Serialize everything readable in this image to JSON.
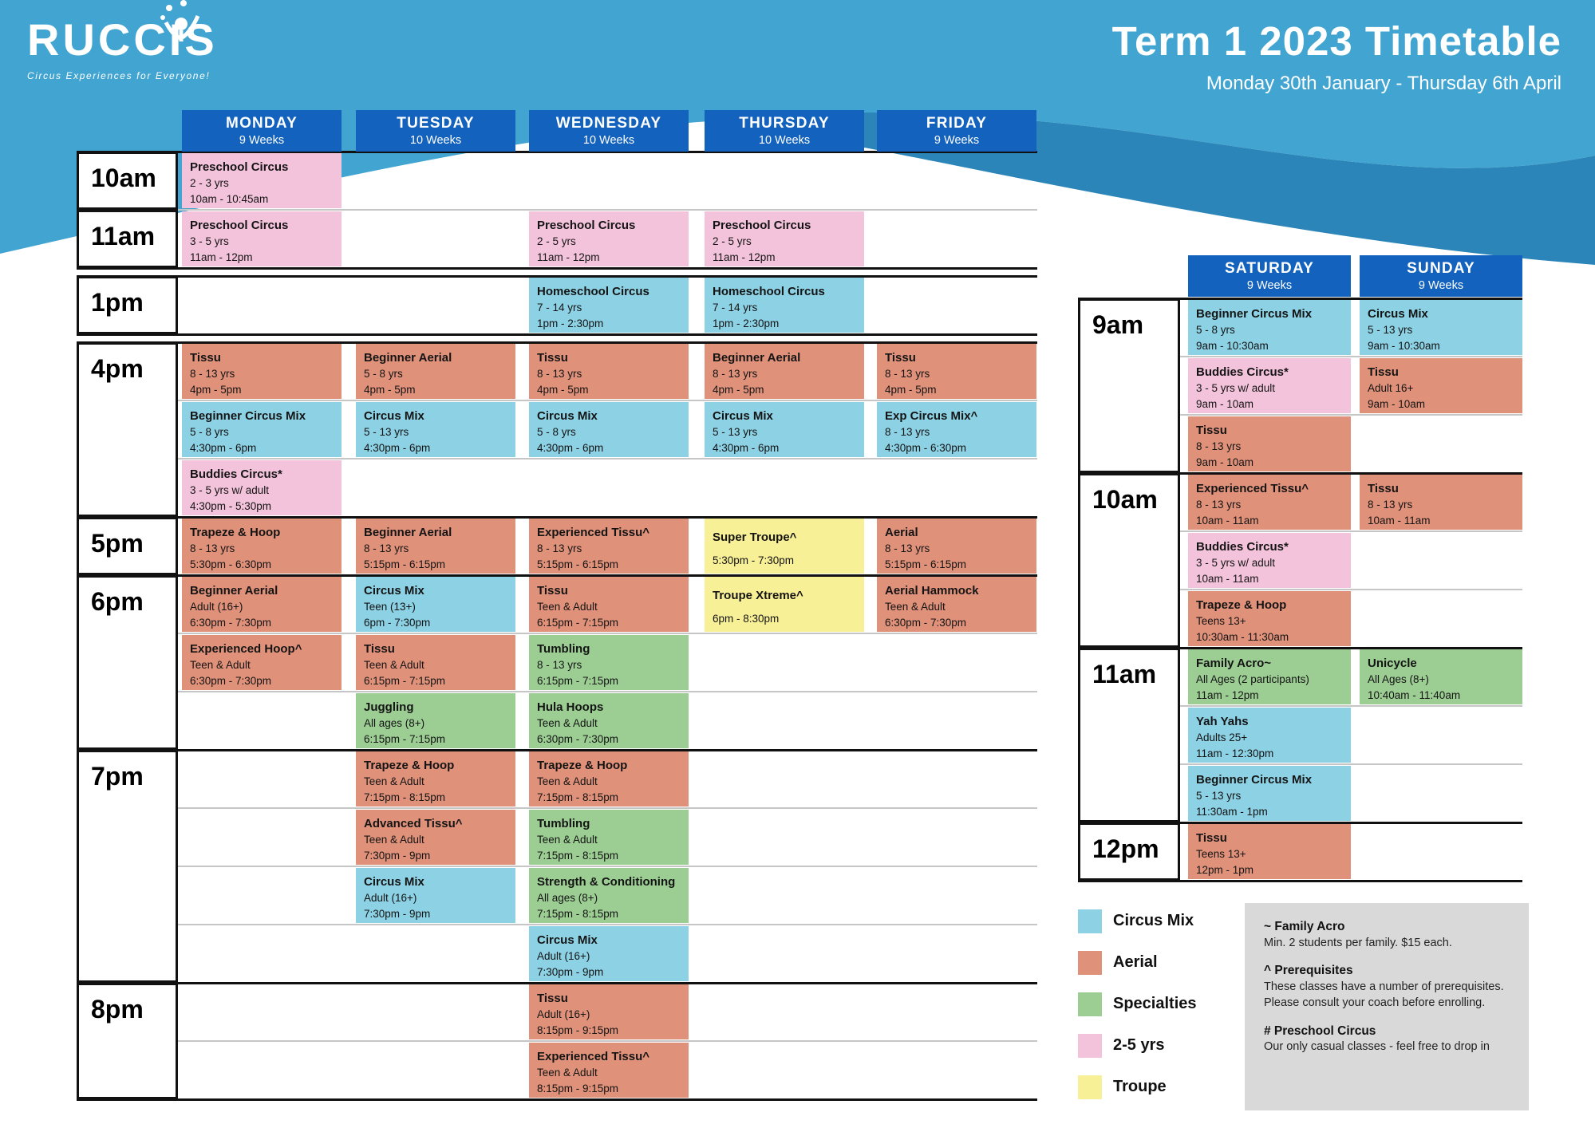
{
  "header": {
    "logo_text": "RUCCIS",
    "logo_tagline": "Circus Experiences for Everyone!",
    "title": "Term 1 2023 Timetable",
    "subtitle": "Monday 30th January - Thursday 6th April"
  },
  "colors": {
    "circus_mix": "#8CD1E4",
    "aerial": "#E0917A",
    "specialties": "#9CCE94",
    "two_five_yrs": "#F3C3DB",
    "troupe": "#F8F096",
    "day_header": "#1362BD",
    "banner_light": "#41A4D1",
    "banner_dark": "#2B85B8",
    "notes_bg": "#D9D9D9"
  },
  "weekday_grid": {
    "days": [
      {
        "label": "MONDAY",
        "weeks": "9 Weeks"
      },
      {
        "label": "TUESDAY",
        "weeks": "10 Weeks"
      },
      {
        "label": "WEDNESDAY",
        "weeks": "10 Weeks"
      },
      {
        "label": "THURSDAY",
        "weeks": "10 Weeks"
      },
      {
        "label": "FRIDAY",
        "weeks": "9 Weeks"
      }
    ],
    "blocks": [
      {
        "time": "10am",
        "thin_top": false,
        "gap_before": false,
        "rows": [
          [
            {
              "day": 0,
              "color": "two_five_yrs",
              "title": "Preschool Circus",
              "age": "2 - 3 yrs",
              "time": "10am - 10:45am"
            }
          ]
        ]
      },
      {
        "time": "11am",
        "thin_top": true,
        "gap_before": false,
        "rows": [
          [
            {
              "day": 0,
              "color": "two_five_yrs",
              "title": "Preschool Circus",
              "age": "3 - 5 yrs",
              "time": "11am - 12pm"
            },
            {
              "day": 2,
              "color": "two_five_yrs",
              "title": "Preschool Circus",
              "age": "2 - 5 yrs",
              "time": "11am - 12pm"
            },
            {
              "day": 3,
              "color": "two_five_yrs",
              "title": "Preschool Circus",
              "age": "2 - 5 yrs",
              "time": "11am - 12pm"
            }
          ]
        ]
      },
      {
        "time": "1pm",
        "thin_top": false,
        "gap_before": true,
        "rows": [
          [
            {
              "day": 2,
              "color": "circus_mix",
              "title": "Homeschool Circus",
              "age": "7 - 14 yrs",
              "time": "1pm - 2:30pm"
            },
            {
              "day": 3,
              "color": "circus_mix",
              "title": "Homeschool Circus",
              "age": "7 - 14 yrs",
              "time": "1pm - 2:30pm"
            }
          ]
        ]
      },
      {
        "time": "4pm",
        "thin_top": false,
        "gap_before": true,
        "rows": [
          [
            {
              "day": 0,
              "color": "aerial",
              "title": "Tissu",
              "age": "8 - 13 yrs",
              "time": "4pm - 5pm"
            },
            {
              "day": 1,
              "color": "aerial",
              "title": "Beginner Aerial",
              "age": "5 - 8 yrs",
              "time": "4pm - 5pm"
            },
            {
              "day": 2,
              "color": "aerial",
              "title": "Tissu",
              "age": "8 - 13 yrs",
              "time": "4pm - 5pm"
            },
            {
              "day": 3,
              "color": "aerial",
              "title": "Beginner Aerial",
              "age": "8 - 13 yrs",
              "time": "4pm - 5pm"
            },
            {
              "day": 4,
              "color": "aerial",
              "title": "Tissu",
              "age": "8 - 13 yrs",
              "time": "4pm - 5pm"
            }
          ],
          [
            {
              "day": 0,
              "color": "circus_mix",
              "title": "Beginner Circus Mix",
              "age": "5 - 8 yrs",
              "time": "4:30pm - 6pm"
            },
            {
              "day": 1,
              "color": "circus_mix",
              "title": "Circus Mix",
              "age": "5 - 13 yrs",
              "time": "4:30pm - 6pm"
            },
            {
              "day": 2,
              "color": "circus_mix",
              "title": "Circus Mix",
              "age": "5 - 8 yrs",
              "time": "4:30pm - 6pm"
            },
            {
              "day": 3,
              "color": "circus_mix",
              "title": "Circus Mix",
              "age": "5 - 13 yrs",
              "time": "4:30pm - 6pm"
            },
            {
              "day": 4,
              "color": "circus_mix",
              "title": "Exp Circus Mix^",
              "age": "8 - 13 yrs",
              "time": "4:30pm - 6:30pm"
            }
          ],
          [
            {
              "day": 0,
              "color": "two_five_yrs",
              "title": "Buddies Circus*",
              "age": "3 - 5 yrs w/ adult",
              "time": "4:30pm - 5:30pm"
            }
          ]
        ]
      },
      {
        "time": "5pm",
        "thin_top": false,
        "gap_before": false,
        "rows": [
          [
            {
              "day": 0,
              "color": "aerial",
              "title": "Trapeze & Hoop",
              "age": "8 - 13 yrs",
              "time": "5:30pm - 6:30pm"
            },
            {
              "day": 1,
              "color": "aerial",
              "title": "Beginner Aerial",
              "age": "8 - 13 yrs",
              "time": "5:15pm - 6:15pm"
            },
            {
              "day": 2,
              "color": "aerial",
              "title": "Experienced Tissu^",
              "age": "8 - 13 yrs",
              "time": "5:15pm - 6:15pm"
            },
            {
              "day": 3,
              "color": "troupe",
              "title": "Super Troupe^",
              "time": "5:30pm - 7:30pm"
            },
            {
              "day": 4,
              "color": "aerial",
              "title": "Aerial",
              "age": "8 - 13 yrs",
              "time": "5:15pm - 6:15pm"
            }
          ]
        ]
      },
      {
        "time": "6pm",
        "thin_top": false,
        "gap_before": false,
        "rows": [
          [
            {
              "day": 0,
              "color": "aerial",
              "title": "Beginner Aerial",
              "age": "Adult (16+)",
              "time": "6:30pm - 7:30pm"
            },
            {
              "day": 1,
              "color": "circus_mix",
              "title": "Circus Mix",
              "age": "Teen (13+)",
              "time": "6pm - 7:30pm"
            },
            {
              "day": 2,
              "color": "aerial",
              "title": "Tissu",
              "age": "Teen & Adult",
              "time": "6:15pm - 7:15pm"
            },
            {
              "day": 3,
              "color": "troupe",
              "title": "Troupe Xtreme^",
              "time": "6pm - 8:30pm"
            },
            {
              "day": 4,
              "color": "aerial",
              "title": "Aerial Hammock",
              "age": "Teen & Adult",
              "time": "6:30pm - 7:30pm"
            }
          ],
          [
            {
              "day": 0,
              "color": "aerial",
              "title": "Experienced Hoop^",
              "age": "Teen & Adult",
              "time": "6:30pm - 7:30pm"
            },
            {
              "day": 1,
              "color": "aerial",
              "title": "Tissu",
              "age": "Teen & Adult",
              "time": "6:15pm - 7:15pm"
            },
            {
              "day": 2,
              "color": "specialties",
              "title": "Tumbling",
              "age": "8 - 13 yrs",
              "time": "6:15pm - 7:15pm"
            }
          ],
          [
            {
              "day": 1,
              "color": "specialties",
              "title": "Juggling",
              "age": "All ages (8+)",
              "time": "6:15pm - 7:15pm"
            },
            {
              "day": 2,
              "color": "specialties",
              "title": "Hula Hoops",
              "age": "Teen & Adult",
              "time": "6:30pm - 7:30pm"
            }
          ]
        ]
      },
      {
        "time": "7pm",
        "thin_top": false,
        "gap_before": false,
        "rows": [
          [
            {
              "day": 1,
              "color": "aerial",
              "title": "Trapeze & Hoop",
              "age": "Teen & Adult",
              "time": "7:15pm - 8:15pm"
            },
            {
              "day": 2,
              "color": "aerial",
              "title": "Trapeze & Hoop",
              "age": "Teen & Adult",
              "time": "7:15pm - 8:15pm"
            }
          ],
          [
            {
              "day": 1,
              "color": "aerial",
              "title": "Advanced Tissu^",
              "age": "Teen & Adult",
              "time": "7:30pm - 9pm"
            },
            {
              "day": 2,
              "color": "specialties",
              "title": "Tumbling",
              "age": "Teen & Adult",
              "time": "7:15pm - 8:15pm"
            }
          ],
          [
            {
              "day": 1,
              "color": "circus_mix",
              "title": "Circus Mix",
              "age": "Adult (16+)",
              "time": "7:30pm - 9pm"
            },
            {
              "day": 2,
              "color": "specialties",
              "title": "Strength & Conditioning",
              "age": "All ages (8+)",
              "time": "7:15pm - 8:15pm"
            }
          ],
          [
            {
              "day": 2,
              "color": "circus_mix",
              "title": "Circus Mix",
              "age": "Adult (16+)",
              "time": "7:30pm - 9pm"
            }
          ]
        ]
      },
      {
        "time": "8pm",
        "thin_top": false,
        "gap_before": false,
        "rows": [
          [
            {
              "day": 2,
              "color": "aerial",
              "title": "Tissu",
              "age": "Adult (16+)",
              "time": "8:15pm - 9:15pm"
            }
          ],
          [
            {
              "day": 2,
              "color": "aerial",
              "title": "Experienced Tissu^",
              "age": "Teen & Adult",
              "time": "8:15pm - 9:15pm"
            }
          ]
        ]
      }
    ]
  },
  "weekend_grid": {
    "days": [
      {
        "label": "SATURDAY",
        "weeks": "9 Weeks"
      },
      {
        "label": "SUNDAY",
        "weeks": "9 Weeks"
      }
    ],
    "blocks": [
      {
        "time": "9am",
        "thin_top": false,
        "gap_before": false,
        "rows": [
          [
            {
              "day": 0,
              "color": "circus_mix",
              "title": "Beginner Circus Mix",
              "age": "5 - 8 yrs",
              "time": "9am - 10:30am"
            },
            {
              "day": 1,
              "color": "circus_mix",
              "title": "Circus Mix",
              "age": "5 - 13 yrs",
              "time": "9am - 10:30am"
            }
          ],
          [
            {
              "day": 0,
              "color": "two_five_yrs",
              "title": "Buddies Circus*",
              "age": "3 - 5 yrs w/ adult",
              "time": "9am - 10am"
            },
            {
              "day": 1,
              "color": "aerial",
              "title": "Tissu",
              "age": "Adult 16+",
              "time": "9am - 10am"
            }
          ],
          [
            {
              "day": 0,
              "color": "aerial",
              "title": "Tissu",
              "age": "8 - 13 yrs",
              "time": "9am - 10am"
            }
          ]
        ]
      },
      {
        "time": "10am",
        "thin_top": false,
        "gap_before": false,
        "rows": [
          [
            {
              "day": 0,
              "color": "aerial",
              "title": "Experienced Tissu^",
              "age": "8 - 13 yrs",
              "time": "10am - 11am"
            },
            {
              "day": 1,
              "color": "aerial",
              "title": "Tissu",
              "age": "8 - 13 yrs",
              "time": "10am - 11am"
            }
          ],
          [
            {
              "day": 0,
              "color": "two_five_yrs",
              "title": "Buddies Circus*",
              "age": "3 - 5 yrs w/ adult",
              "time": "10am - 11am"
            }
          ],
          [
            {
              "day": 0,
              "color": "aerial",
              "title": "Trapeze & Hoop",
              "age": "Teens 13+",
              "time": "10:30am - 11:30am"
            }
          ]
        ]
      },
      {
        "time": "11am",
        "thin_top": false,
        "gap_before": false,
        "rows": [
          [
            {
              "day": 0,
              "color": "specialties",
              "title": "Family Acro~",
              "age": "All Ages (2 participants)",
              "time": "11am - 12pm"
            },
            {
              "day": 1,
              "color": "specialties",
              "title": "Unicycle",
              "age": "All Ages (8+)",
              "time": "10:40am - 11:40am"
            }
          ],
          [
            {
              "day": 0,
              "color": "circus_mix",
              "title": "Yah Yahs",
              "age": "Adults 25+",
              "time": "11am - 12:30pm"
            }
          ],
          [
            {
              "day": 0,
              "color": "circus_mix",
              "title": "Beginner Circus Mix",
              "age": "5 - 13 yrs",
              "time": "11:30am - 1pm"
            }
          ]
        ]
      },
      {
        "time": "12pm",
        "thin_top": false,
        "gap_before": false,
        "rows": [
          [
            {
              "day": 0,
              "color": "aerial",
              "title": "Tissu",
              "age": "Teens 13+",
              "time": "12pm - 1pm"
            }
          ]
        ]
      }
    ]
  },
  "legend": [
    {
      "label": "Circus Mix",
      "color": "circus_mix"
    },
    {
      "label": "Aerial",
      "color": "aerial"
    },
    {
      "label": "Specialties",
      "color": "specialties"
    },
    {
      "label": "2-5 yrs",
      "color": "two_five_yrs"
    },
    {
      "label": "Troupe",
      "color": "troupe"
    }
  ],
  "notes": [
    {
      "title": "~ Family Acro",
      "body": "Min. 2 students per family. $15 each."
    },
    {
      "title": "^ Prerequisites",
      "body": "These classes have a number of prerequisites. Please consult your coach before enrolling."
    },
    {
      "title": "# Preschool Circus",
      "body": "Our only casual classes - feel free to drop in"
    }
  ]
}
